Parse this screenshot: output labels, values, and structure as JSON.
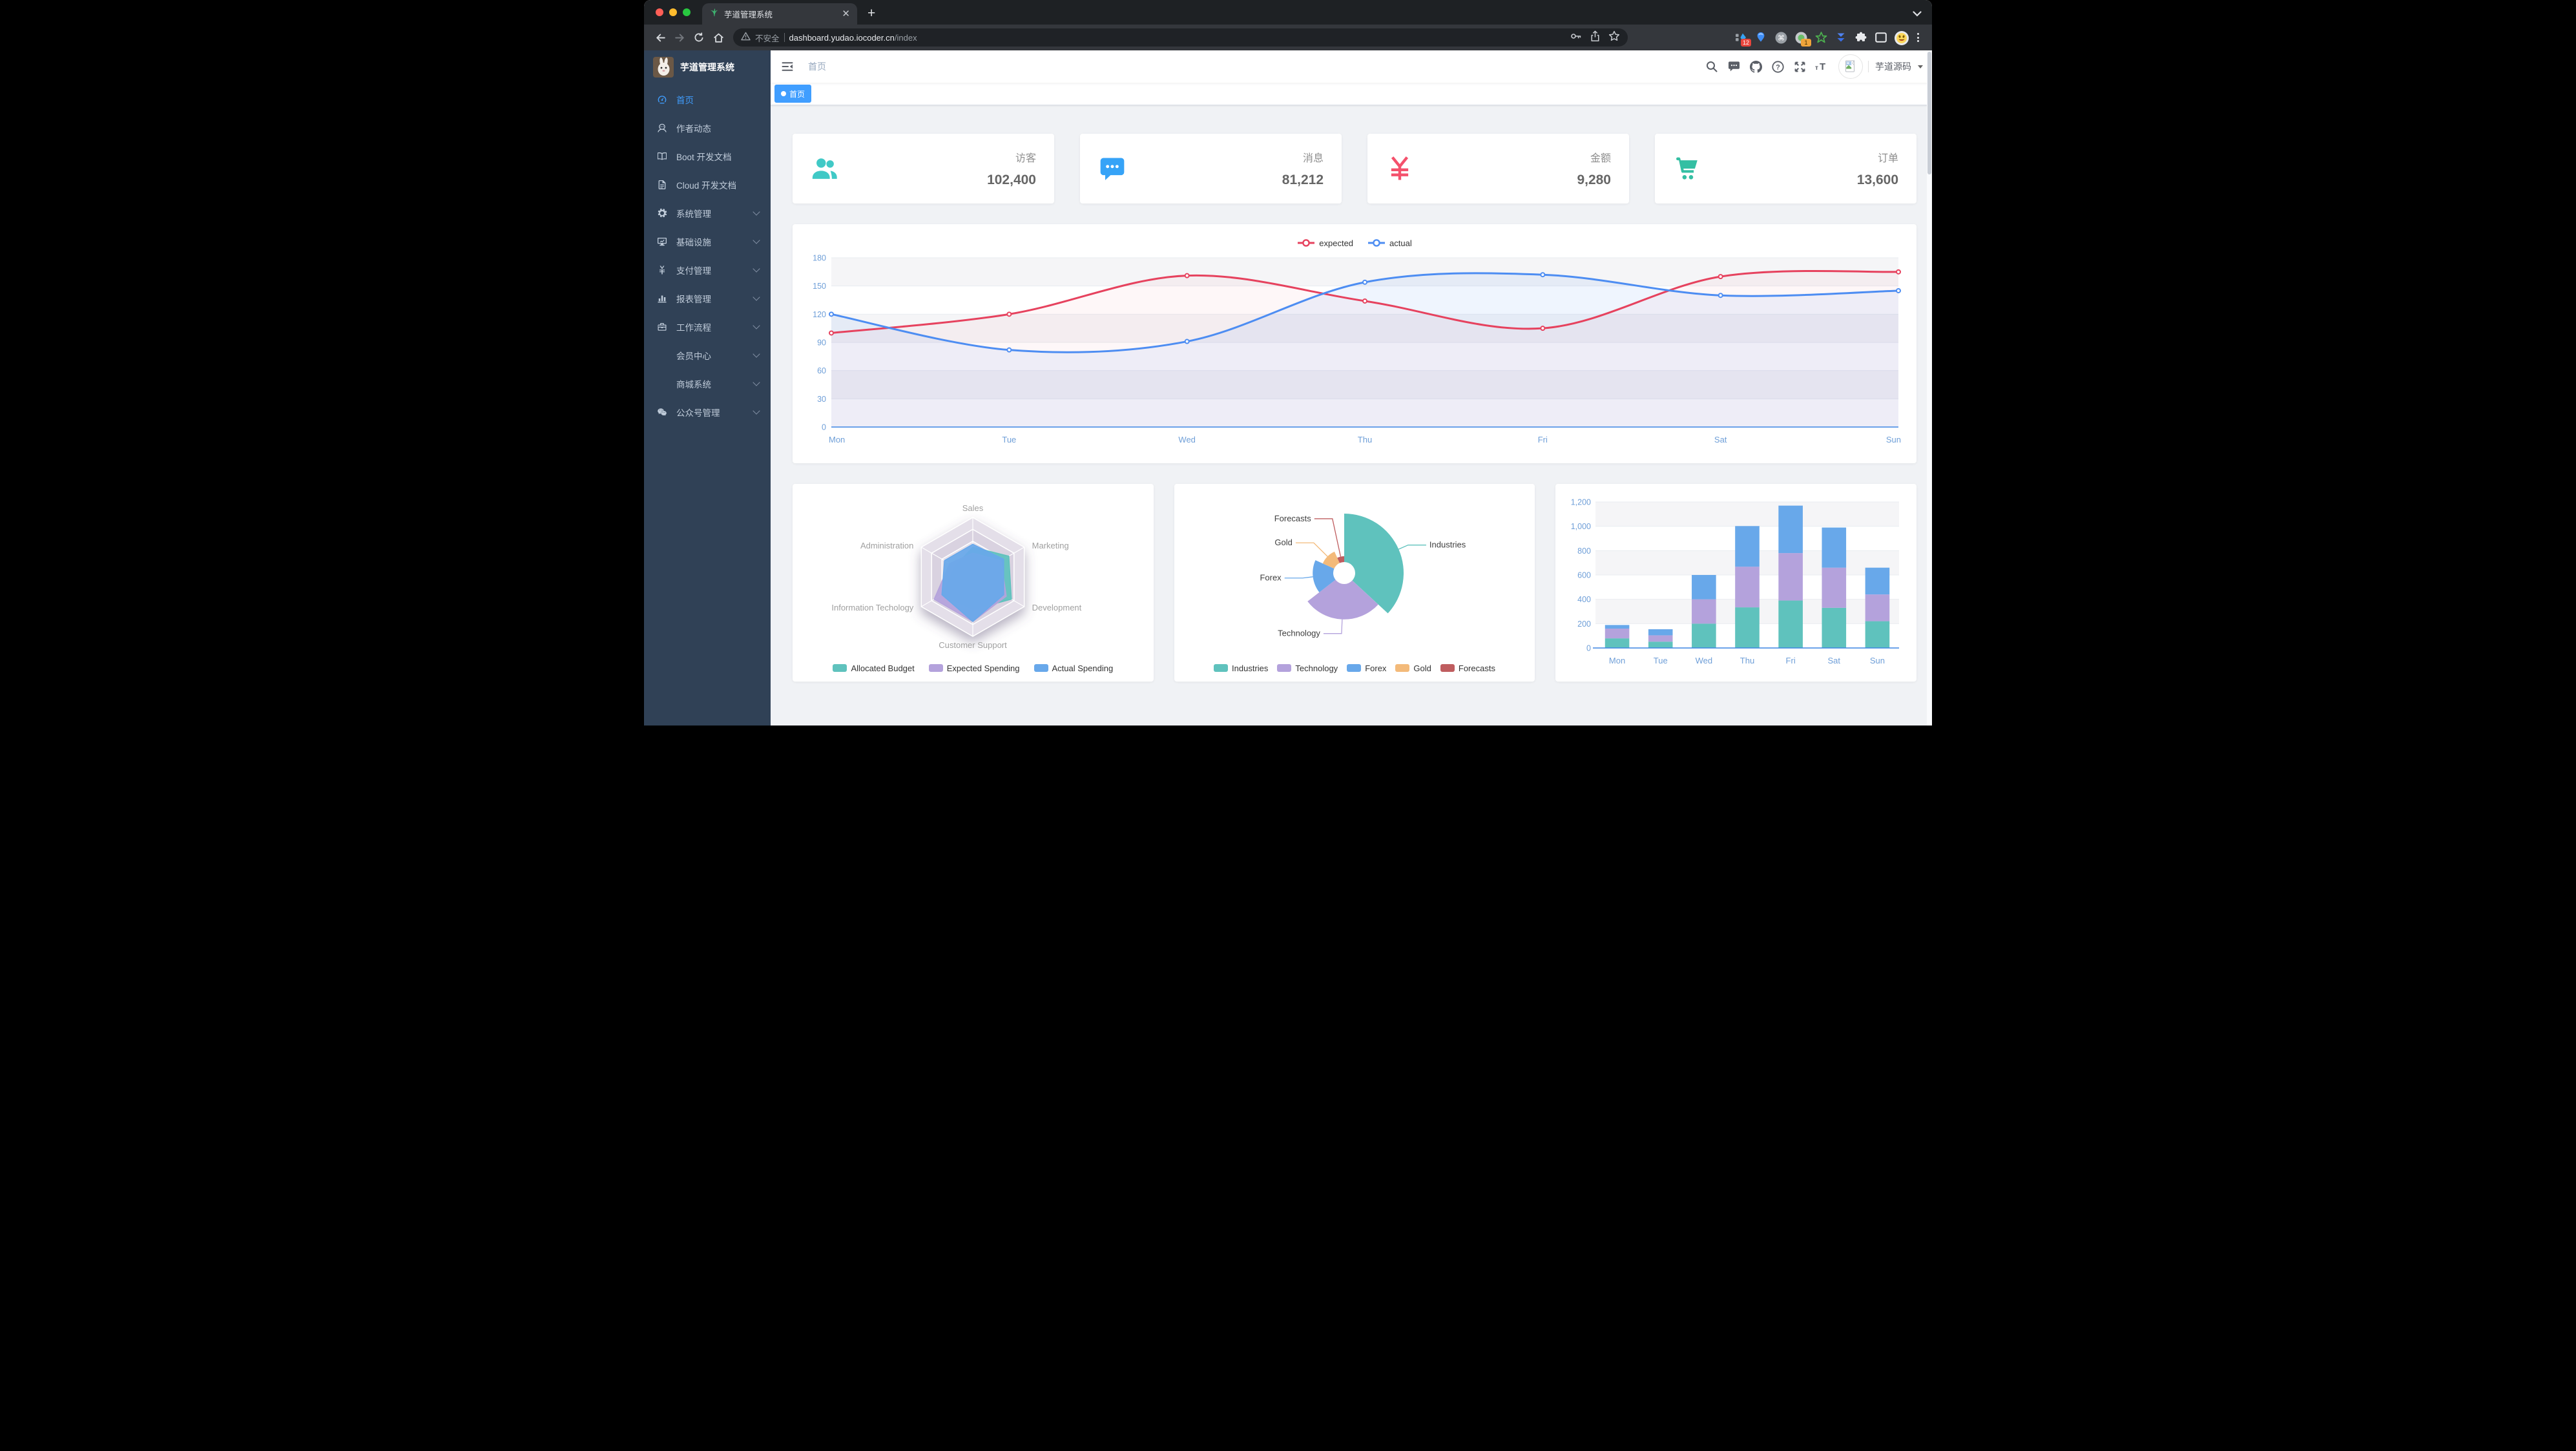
{
  "theme": {
    "accent": "#409eff",
    "sidebar_bg": "#304156",
    "content_bg": "#f0f2f5",
    "axis_label_color": "#6f9fd8",
    "axis_line_color": "#3d85e4"
  },
  "browser": {
    "tab_title": "芋道管理系统",
    "security_label": "不安全",
    "url_host": "dashboard.yudao.iocoder.cn",
    "url_path": "/index",
    "extension_badges": {
      "first": "12",
      "second": "1"
    }
  },
  "sidebar": {
    "logo_title": "芋道管理系统",
    "items": [
      {
        "id": "home",
        "label": "首页",
        "icon": "dashboard-icon",
        "active": true,
        "arrow": false
      },
      {
        "id": "author",
        "label": "作者动态",
        "icon": "author-icon",
        "active": false,
        "arrow": false
      },
      {
        "id": "boot-docs",
        "label": "Boot 开发文档",
        "icon": "book-icon",
        "active": false,
        "arrow": false
      },
      {
        "id": "cloud-docs",
        "label": "Cloud 开发文档",
        "icon": "document-icon",
        "active": false,
        "arrow": false
      },
      {
        "id": "system",
        "label": "系统管理",
        "icon": "gear-icon",
        "active": false,
        "arrow": true
      },
      {
        "id": "infra",
        "label": "基础设施",
        "icon": "monitor-icon",
        "active": false,
        "arrow": true
      },
      {
        "id": "pay",
        "label": "支付管理",
        "icon": "yen-icon",
        "active": false,
        "arrow": true
      },
      {
        "id": "report",
        "label": "报表管理",
        "icon": "bar-chart-icon",
        "active": false,
        "arrow": true
      },
      {
        "id": "workflow",
        "label": "工作流程",
        "icon": "briefcase-icon",
        "active": false,
        "arrow": true
      },
      {
        "id": "member",
        "label": "会员中心",
        "icon": null,
        "active": false,
        "arrow": true
      },
      {
        "id": "mall",
        "label": "商城系统",
        "icon": null,
        "active": false,
        "arrow": true
      },
      {
        "id": "mp",
        "label": "公众号管理",
        "icon": "wechat-icon",
        "active": false,
        "arrow": true
      }
    ]
  },
  "header": {
    "breadcrumb": "首页",
    "username": "芋道源码"
  },
  "tags": [
    {
      "label": "首页",
      "active": true
    }
  ],
  "stat_cards": [
    {
      "label": "访客",
      "value": "102,400",
      "icon": "people-icon",
      "color": "#40c9c6"
    },
    {
      "label": "消息",
      "value": "81,212",
      "icon": "message-icon",
      "color": "#36a3f7"
    },
    {
      "label": "金额",
      "value": "9,280",
      "icon": "money-icon",
      "color": "#f4516c"
    },
    {
      "label": "订单",
      "value": "13,600",
      "icon": "shopping-cart-icon",
      "color": "#34bfa3"
    }
  ],
  "chart_data": [
    {
      "type": "line",
      "categories": [
        "Mon",
        "Tue",
        "Wed",
        "Thu",
        "Fri",
        "Sat",
        "Sun"
      ],
      "series": [
        {
          "name": "expected",
          "color": "#e6425e",
          "values": [
            100,
            120,
            161,
            134,
            105,
            160,
            165
          ]
        },
        {
          "name": "actual",
          "color": "#4d8df2",
          "values": [
            120,
            82,
            91,
            154,
            162,
            140,
            145
          ]
        }
      ],
      "ylim": [
        0,
        180
      ],
      "yticks": [
        0,
        30,
        60,
        90,
        120,
        150,
        180
      ],
      "legend_position": "top",
      "grid": true
    },
    {
      "type": "radar",
      "indicators": [
        {
          "name": "Sales",
          "max": 10000
        },
        {
          "name": "Marketing",
          "max": 20000
        },
        {
          "name": "Development",
          "max": 20000
        },
        {
          "name": "Customer Support",
          "max": 20000
        },
        {
          "name": "Information Techology",
          "max": 20000
        },
        {
          "name": "Administration",
          "max": 20000
        }
      ],
      "series": [
        {
          "name": "Allocated Budget",
          "color": "#5fc2bd",
          "values": [
            5000,
            14000,
            15000,
            11000,
            12000,
            7000
          ]
        },
        {
          "name": "Expected Spending",
          "color": "#b4a2dc",
          "values": [
            4000,
            11000,
            13000,
            15000,
            15000,
            9000
          ]
        },
        {
          "name": "Actual Spending",
          "color": "#68a8ea",
          "values": [
            5500,
            12000,
            12000,
            15000,
            12000,
            11000
          ]
        }
      ],
      "legend_position": "bottom"
    },
    {
      "type": "pie",
      "rose": true,
      "slices": [
        {
          "name": "Industries",
          "value": 320,
          "color": "#5fc2bd"
        },
        {
          "name": "Technology",
          "value": 240,
          "color": "#b4a2dc"
        },
        {
          "name": "Forex",
          "value": 149,
          "color": "#68a8ea"
        },
        {
          "name": "Gold",
          "value": 100,
          "color": "#f3ba7a"
        },
        {
          "name": "Forecasts",
          "value": 59,
          "color": "#bf5d5f"
        }
      ],
      "legend_position": "bottom"
    },
    {
      "type": "bar",
      "stacked": true,
      "categories": [
        "Mon",
        "Tue",
        "Wed",
        "Thu",
        "Fri",
        "Sat",
        "Sun"
      ],
      "series": [
        {
          "color": "#5fc2bd",
          "values": [
            79,
            52,
            200,
            334,
            390,
            330,
            220
          ]
        },
        {
          "color": "#b4a2dc",
          "values": [
            80,
            52,
            200,
            334,
            390,
            330,
            220
          ]
        },
        {
          "color": "#68a8ea",
          "values": [
            30,
            50,
            200,
            334,
            390,
            330,
            220
          ]
        }
      ],
      "ylim": [
        0,
        1200
      ],
      "yticks": [
        0,
        200,
        400,
        600,
        800,
        1000,
        1200
      ],
      "ytick_labels": [
        "0",
        "200",
        "400",
        "600",
        "800",
        "1,000",
        "1,200"
      ]
    }
  ]
}
